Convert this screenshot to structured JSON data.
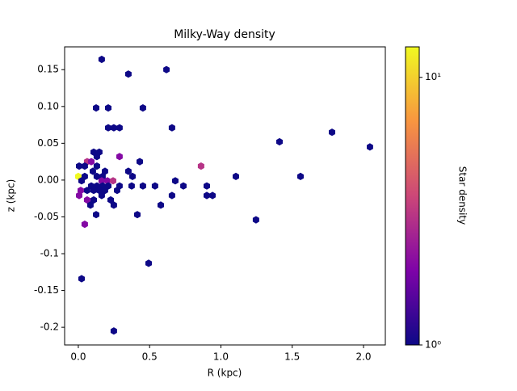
{
  "chart_data": {
    "type": "hexbin",
    "title": "Milky-Way density",
    "xlabel": "R (kpc)",
    "ylabel": "z (kpc)",
    "colorbar_label": "Star density",
    "cmap": "plasma",
    "color_scale": "log",
    "clim": [
      1,
      13
    ],
    "cticks": [
      {
        "value": 1,
        "label": "10⁰"
      },
      {
        "value": 10,
        "label": "10¹"
      }
    ],
    "xlim": [
      -0.096,
      2.153
    ],
    "ylim": [
      -0.224,
      0.181
    ],
    "xticks": [
      {
        "value": 0,
        "label": "0.0"
      },
      0.5,
      {
        "value": 1,
        "label": "1.0"
      },
      1.5,
      {
        "value": 2,
        "label": "2.0"
      }
    ],
    "yticks": [
      -0.2,
      -0.15,
      -0.1,
      -0.05,
      {
        "value": 0,
        "label": "0.00"
      },
      0.05,
      {
        "value": 0.1,
        "label": "0.10"
      },
      0.15
    ],
    "x": [
      0.164,
      0.351,
      0.618,
      0.125,
      0.21,
      0.453,
      0.21,
      0.249,
      0.289,
      0.657,
      1.779,
      1.411,
      2.045,
      0.108,
      0.147,
      0.13,
      0.289,
      0.431,
      0.062,
      0.091,
      0.006,
      0.045,
      0.13,
      0.861,
      0.102,
      0.187,
      0.351,
      0.045,
      0.13,
      0.17,
      0.38,
      1.105,
      1.558,
      0.0,
      0.68,
      0.023,
      0.164,
      0.204,
      0.244,
      0.091,
      0.13,
      0.17,
      0.21,
      0.289,
      0.374,
      0.453,
      0.538,
      0.737,
      0.901,
      0.017,
      0.062,
      0.108,
      0.147,
      0.187,
      0.272,
      0.006,
      0.164,
      0.657,
      0.901,
      0.941,
      0.062,
      0.108,
      0.227,
      0.085,
      0.249,
      0.578,
      0.125,
      0.414,
      0.045,
      1.246,
      0.493,
      0.023,
      0.249
    ],
    "y": [
      0.164,
      0.144,
      0.15,
      0.098,
      0.098,
      0.098,
      0.071,
      0.071,
      0.071,
      0.071,
      0.065,
      0.052,
      0.045,
      0.038,
      0.038,
      0.032,
      0.032,
      0.025,
      0.025,
      0.025,
      0.019,
      0.019,
      0.019,
      0.019,
      0.012,
      0.012,
      0.012,
      0.005,
      0.005,
      0.005,
      0.005,
      0.005,
      0.005,
      0.005,
      -0.001,
      -0.001,
      -0.001,
      -0.001,
      -0.001,
      -0.008,
      -0.008,
      -0.008,
      -0.008,
      -0.008,
      -0.008,
      -0.008,
      -0.008,
      -0.008,
      -0.008,
      -0.014,
      -0.014,
      -0.014,
      -0.014,
      -0.014,
      -0.014,
      -0.021,
      -0.021,
      -0.021,
      -0.021,
      -0.021,
      -0.027,
      -0.027,
      -0.027,
      -0.034,
      -0.034,
      -0.034,
      -0.047,
      -0.047,
      -0.06,
      -0.054,
      -0.113,
      -0.134,
      -0.205
    ],
    "counts": [
      1,
      1,
      1,
      1,
      1,
      1,
      1,
      1,
      1,
      1,
      1,
      1,
      1,
      1,
      1,
      1,
      2,
      1,
      3,
      2,
      1,
      1,
      1,
      3,
      1,
      1,
      1,
      1,
      1,
      1,
      1,
      1,
      1,
      13,
      1,
      1,
      2,
      2,
      3,
      1,
      1,
      1,
      1,
      1,
      1,
      1,
      1,
      1,
      1,
      2,
      1,
      1,
      1,
      1,
      1,
      2,
      1,
      1,
      1,
      1,
      2,
      1,
      1,
      1,
      1,
      1,
      1,
      1,
      2,
      1,
      1,
      1,
      1
    ]
  }
}
